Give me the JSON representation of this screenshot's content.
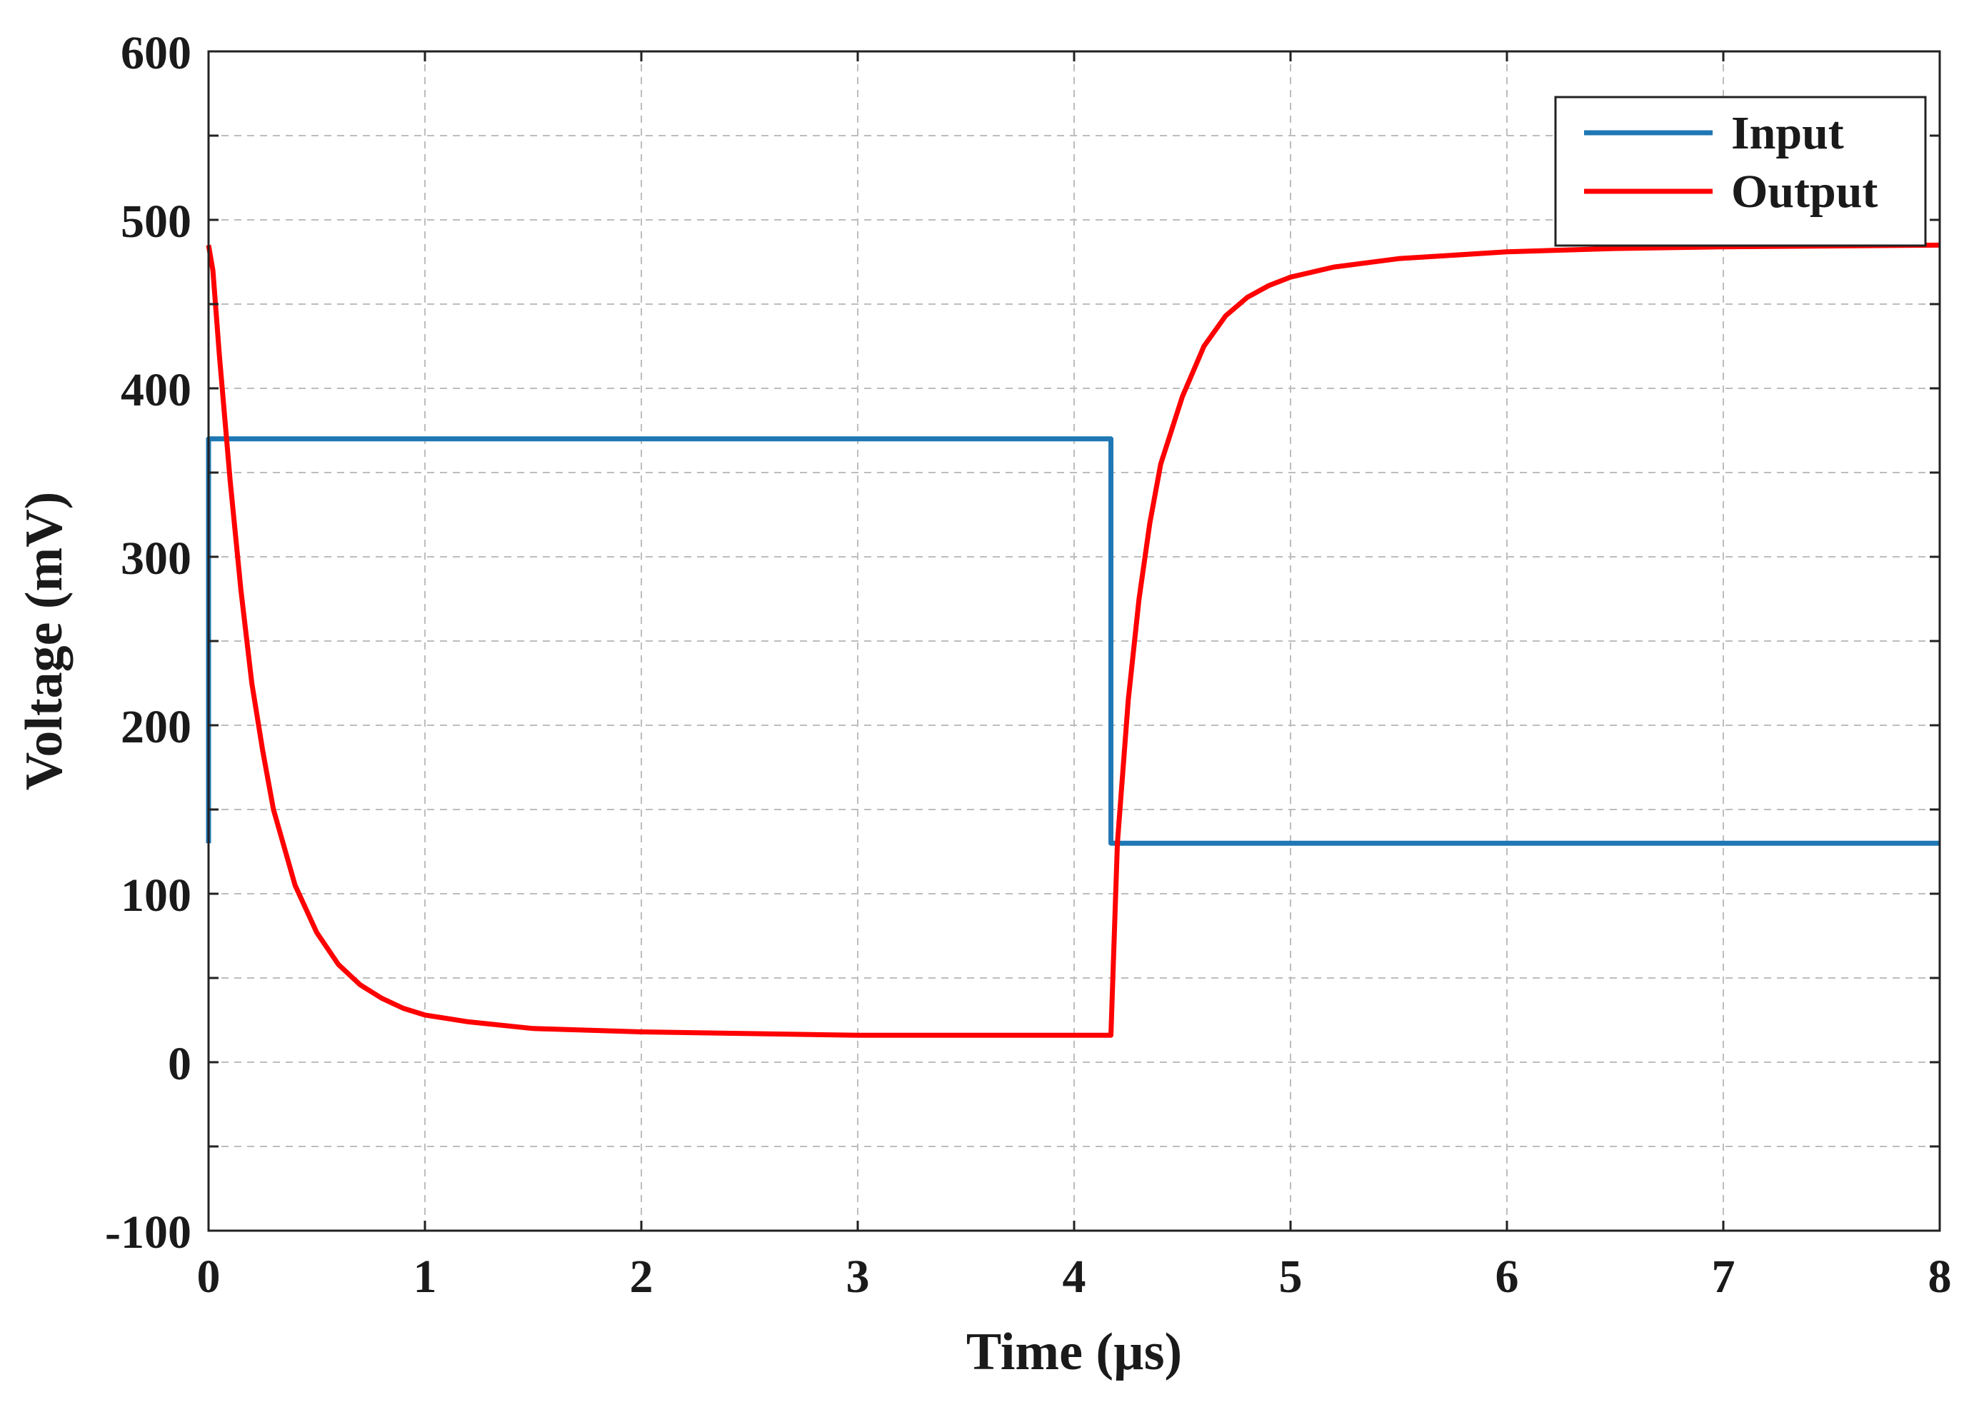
{
  "chart_data": {
    "type": "line",
    "title": "",
    "xlabel": "Time (µs)",
    "ylabel": "Voltage (mV)",
    "xlim": [
      0,
      8
    ],
    "ylim": [
      -100,
      600
    ],
    "xticks": [
      0,
      1,
      2,
      3,
      4,
      5,
      6,
      7,
      8
    ],
    "yticks": [
      -100,
      0,
      100,
      200,
      300,
      400,
      500,
      600
    ],
    "xtick_labels": [
      "0",
      "1",
      "2",
      "3",
      "4",
      "5",
      "6",
      "7",
      "8"
    ],
    "ytick_labels": [
      "-100",
      "0",
      "100",
      "200",
      "300",
      "400",
      "500",
      "600"
    ],
    "grid": true,
    "legend_position": "top-right",
    "series": [
      {
        "name": "Input",
        "color": "#1f77b4",
        "x": [
          0,
          0,
          0.01,
          4.17,
          4.17,
          8
        ],
        "y": [
          130,
          370,
          370,
          370,
          130,
          130
        ]
      },
      {
        "name": "Output",
        "color": "#ff0000",
        "x": [
          0,
          0.02,
          0.05,
          0.1,
          0.15,
          0.2,
          0.25,
          0.3,
          0.4,
          0.5,
          0.6,
          0.7,
          0.8,
          0.9,
          1.0,
          1.2,
          1.5,
          2.0,
          2.5,
          3.0,
          3.5,
          4.0,
          4.17,
          4.17,
          4.2,
          4.25,
          4.3,
          4.35,
          4.4,
          4.5,
          4.6,
          4.7,
          4.8,
          4.9,
          5.0,
          5.2,
          5.5,
          6.0,
          6.5,
          7.0,
          8.0
        ],
        "y": [
          485,
          470,
          420,
          345,
          280,
          225,
          185,
          150,
          105,
          77,
          58,
          46,
          38,
          32,
          28,
          24,
          20,
          18,
          17,
          16,
          16,
          16,
          16,
          16,
          130,
          215,
          275,
          320,
          355,
          395,
          425,
          443,
          454,
          461,
          466,
          472,
          477,
          481,
          483,
          484,
          485
        ]
      }
    ]
  }
}
